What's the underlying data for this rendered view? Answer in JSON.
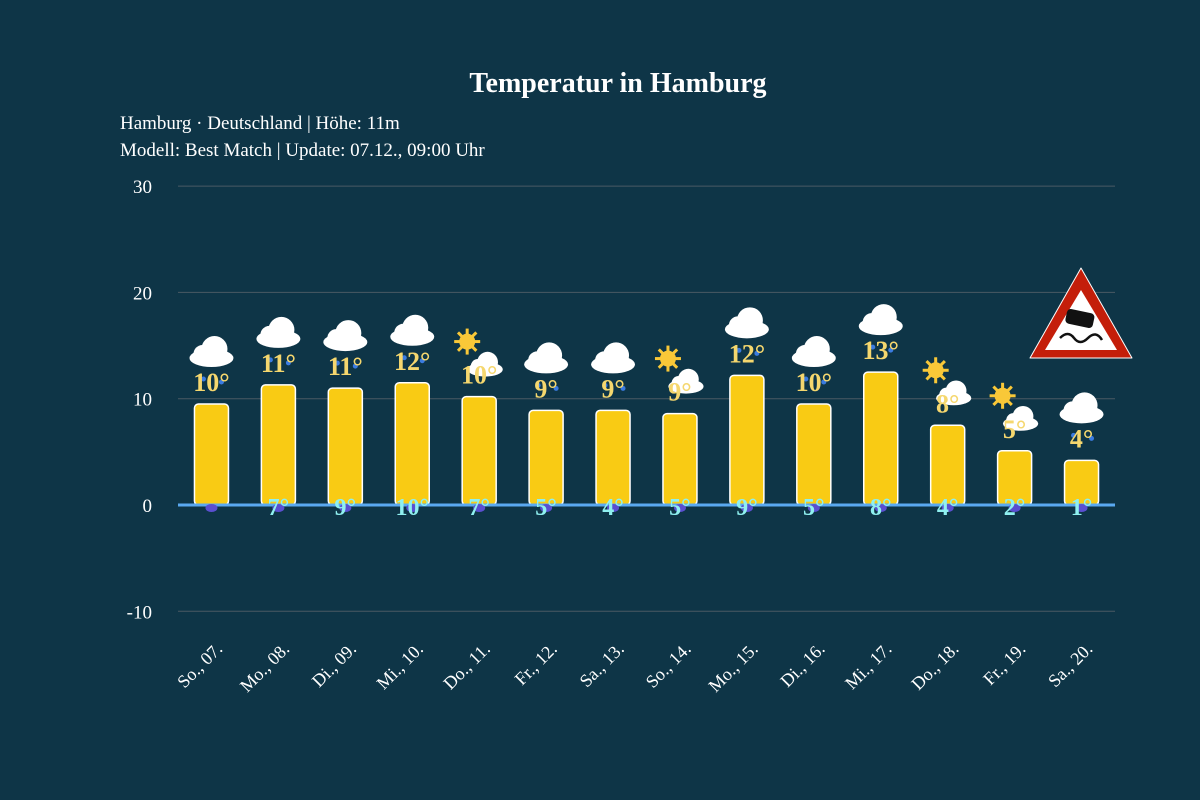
{
  "chart_data": {
    "type": "bar",
    "title": "Temperatur in Hamburg",
    "subtitle_lines": [
      "Hamburg · Deutschland | Höhe: 11m",
      "Modell: Best Match | Update: 07.12., 09:00 Uhr"
    ],
    "xlabel": "",
    "ylabel": "",
    "ylim": [
      -12,
      30
    ],
    "yticks": [
      -10,
      0,
      10,
      20,
      30
    ],
    "grid": true,
    "categories": [
      "So., 07.",
      "Mo., 08.",
      "Di., 09.",
      "Mi., 10.",
      "Do., 11.",
      "Fr., 12.",
      "Sa., 13.",
      "So., 14.",
      "Mo., 15.",
      "Di., 16.",
      "Mi., 17.",
      "Do., 18.",
      "Fr., 19.",
      "Sa., 20."
    ],
    "values": [
      9.5,
      11.3,
      11.0,
      11.5,
      10.2,
      8.9,
      8.9,
      8.6,
      12.2,
      9.5,
      12.5,
      7.5,
      5.1,
      4.2
    ],
    "max_labels": [
      "10°",
      "11°",
      "11°",
      "12°",
      "10°",
      "9°",
      "9°",
      "9°",
      "12°",
      "10°",
      "13°",
      "8°",
      "5°",
      "4°"
    ],
    "min_labels": [
      "",
      "7°",
      "9°",
      "10°",
      "7°",
      "5°",
      "4°",
      "5°",
      "9°",
      "5°",
      "8°",
      "4°",
      "2°",
      "1°"
    ],
    "weather_icons": [
      "rain-cloud",
      "rain-cloud",
      "rain-cloud",
      "rain-cloud",
      "partly-cloudy",
      "rain-cloud",
      "rain-cloud",
      "partly-cloudy",
      "rain-cloud",
      "rain-cloud",
      "rain-cloud",
      "partly-cloudy",
      "partly-cloudy",
      "rain-cloud"
    ],
    "warning_icon": "slippery-road-warning-icon",
    "colors": {
      "background": "#0e3547",
      "bar": "#f9cb14",
      "max_label": "#f5d76e",
      "min_label": "#8ff0f0",
      "zero_line": "#5aa9f0",
      "grid": "#4a5a64",
      "warning_border": "#c41e0a"
    }
  }
}
